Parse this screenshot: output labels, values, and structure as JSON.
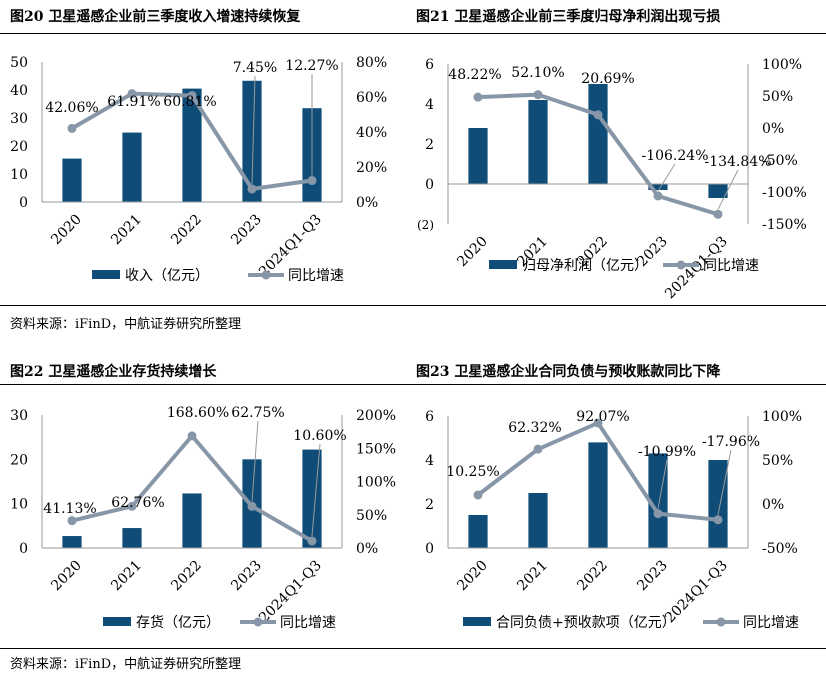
{
  "source_top": "资料来源：iFinD，中航证券研究所整理",
  "source_bottom": "资料来源：iFinD，中航证券研究所整理",
  "stray_label": "(2)",
  "colors": {
    "bar": "#0f4d78",
    "line": "#8797a7",
    "stray": "#c00000"
  },
  "chart_data": [
    {
      "type": "bar",
      "title": "图20  卫星遥感企业前三季度收入增速持续恢复",
      "categories": [
        "2020",
        "2021",
        "2022",
        "2023",
        "2024Q1-Q3"
      ],
      "series": [
        {
          "name": "收入（亿元）",
          "type": "bar",
          "axis": "left",
          "values": [
            15.5,
            24.8,
            40.5,
            43.3,
            33.5
          ]
        },
        {
          "name": "同比增速",
          "type": "line",
          "axis": "right",
          "values": [
            42.06,
            61.91,
            60.81,
            7.45,
            12.27
          ],
          "labels": [
            "42.06%",
            "61.91%",
            "60.81%",
            "7.45%",
            "12.27%"
          ]
        }
      ],
      "left_axis": {
        "min": 0,
        "max": 50,
        "ticks": [
          "0",
          "10",
          "20",
          "30",
          "40",
          "50"
        ]
      },
      "right_axis": {
        "min": 0,
        "max": 80,
        "ticks": [
          "0%",
          "20%",
          "40%",
          "60%",
          "80%"
        ]
      },
      "legend": "bottom"
    },
    {
      "type": "bar",
      "title": "图21  卫星遥感企业前三季度归母净利润出现亏损",
      "categories": [
        "2020",
        "2021",
        "2022",
        "2023",
        "2024Q1-Q3"
      ],
      "series": [
        {
          "name": "归母净利润（亿元）",
          "type": "bar",
          "axis": "left",
          "values": [
            2.8,
            4.2,
            5.0,
            -0.3,
            -0.7
          ]
        },
        {
          "name": "同比增速",
          "type": "line",
          "axis": "right",
          "values": [
            48.22,
            52.1,
            20.69,
            -106.24,
            -134.84
          ],
          "labels": [
            "48.22%",
            "52.10%",
            "20.69%",
            "-106.24%",
            "-134.84%"
          ]
        }
      ],
      "left_axis": {
        "min": -2,
        "max": 6,
        "ticks": [
          "0",
          "2",
          "4",
          "6"
        ]
      },
      "right_axis": {
        "min": -150,
        "max": 100,
        "ticks": [
          "-150%",
          "-100%",
          "-50%",
          "0%",
          "50%",
          "100%"
        ]
      },
      "legend": "bottom"
    },
    {
      "type": "bar",
      "title": "图22  卫星遥感企业存货持续增长",
      "categories": [
        "2020",
        "2021",
        "2022",
        "2023",
        "2024Q1-Q3"
      ],
      "series": [
        {
          "name": "存货（亿元）",
          "type": "bar",
          "axis": "left",
          "values": [
            2.7,
            4.5,
            12.3,
            20.0,
            22.2
          ]
        },
        {
          "name": "同比增速",
          "type": "line",
          "axis": "right",
          "values": [
            41.13,
            62.76,
            168.6,
            62.75,
            10.6
          ],
          "labels": [
            "41.13%",
            "62.76%",
            "168.60%",
            "62.75%",
            "10.60%"
          ]
        }
      ],
      "left_axis": {
        "min": 0,
        "max": 30,
        "ticks": [
          "0",
          "10",
          "20",
          "30"
        ]
      },
      "right_axis": {
        "min": 0,
        "max": 200,
        "ticks": [
          "0%",
          "50%",
          "100%",
          "150%",
          "200%"
        ]
      },
      "legend": "bottom"
    },
    {
      "type": "bar",
      "title": "图23  卫星遥感企业合同负债与预收账款同比下降",
      "categories": [
        "2020",
        "2021",
        "2022",
        "2023",
        "2024Q1-Q3"
      ],
      "series": [
        {
          "name": "合同负债+预收款项（亿元）",
          "type": "bar",
          "axis": "left",
          "values": [
            1.5,
            2.5,
            4.8,
            4.3,
            4.0
          ]
        },
        {
          "name": "同比增速",
          "type": "line",
          "axis": "right",
          "values": [
            10.25,
            62.32,
            92.07,
            -10.99,
            -17.96
          ],
          "labels": [
            "10.25%",
            "62.32%",
            "92.07%",
            "-10.99%",
            "-17.96%"
          ]
        }
      ],
      "left_axis": {
        "min": 0,
        "max": 6,
        "ticks": [
          "0",
          "2",
          "4",
          "6"
        ]
      },
      "right_axis": {
        "min": -50,
        "max": 100,
        "ticks": [
          "-50%",
          "0%",
          "50%",
          "100%"
        ]
      },
      "legend": "bottom"
    }
  ]
}
